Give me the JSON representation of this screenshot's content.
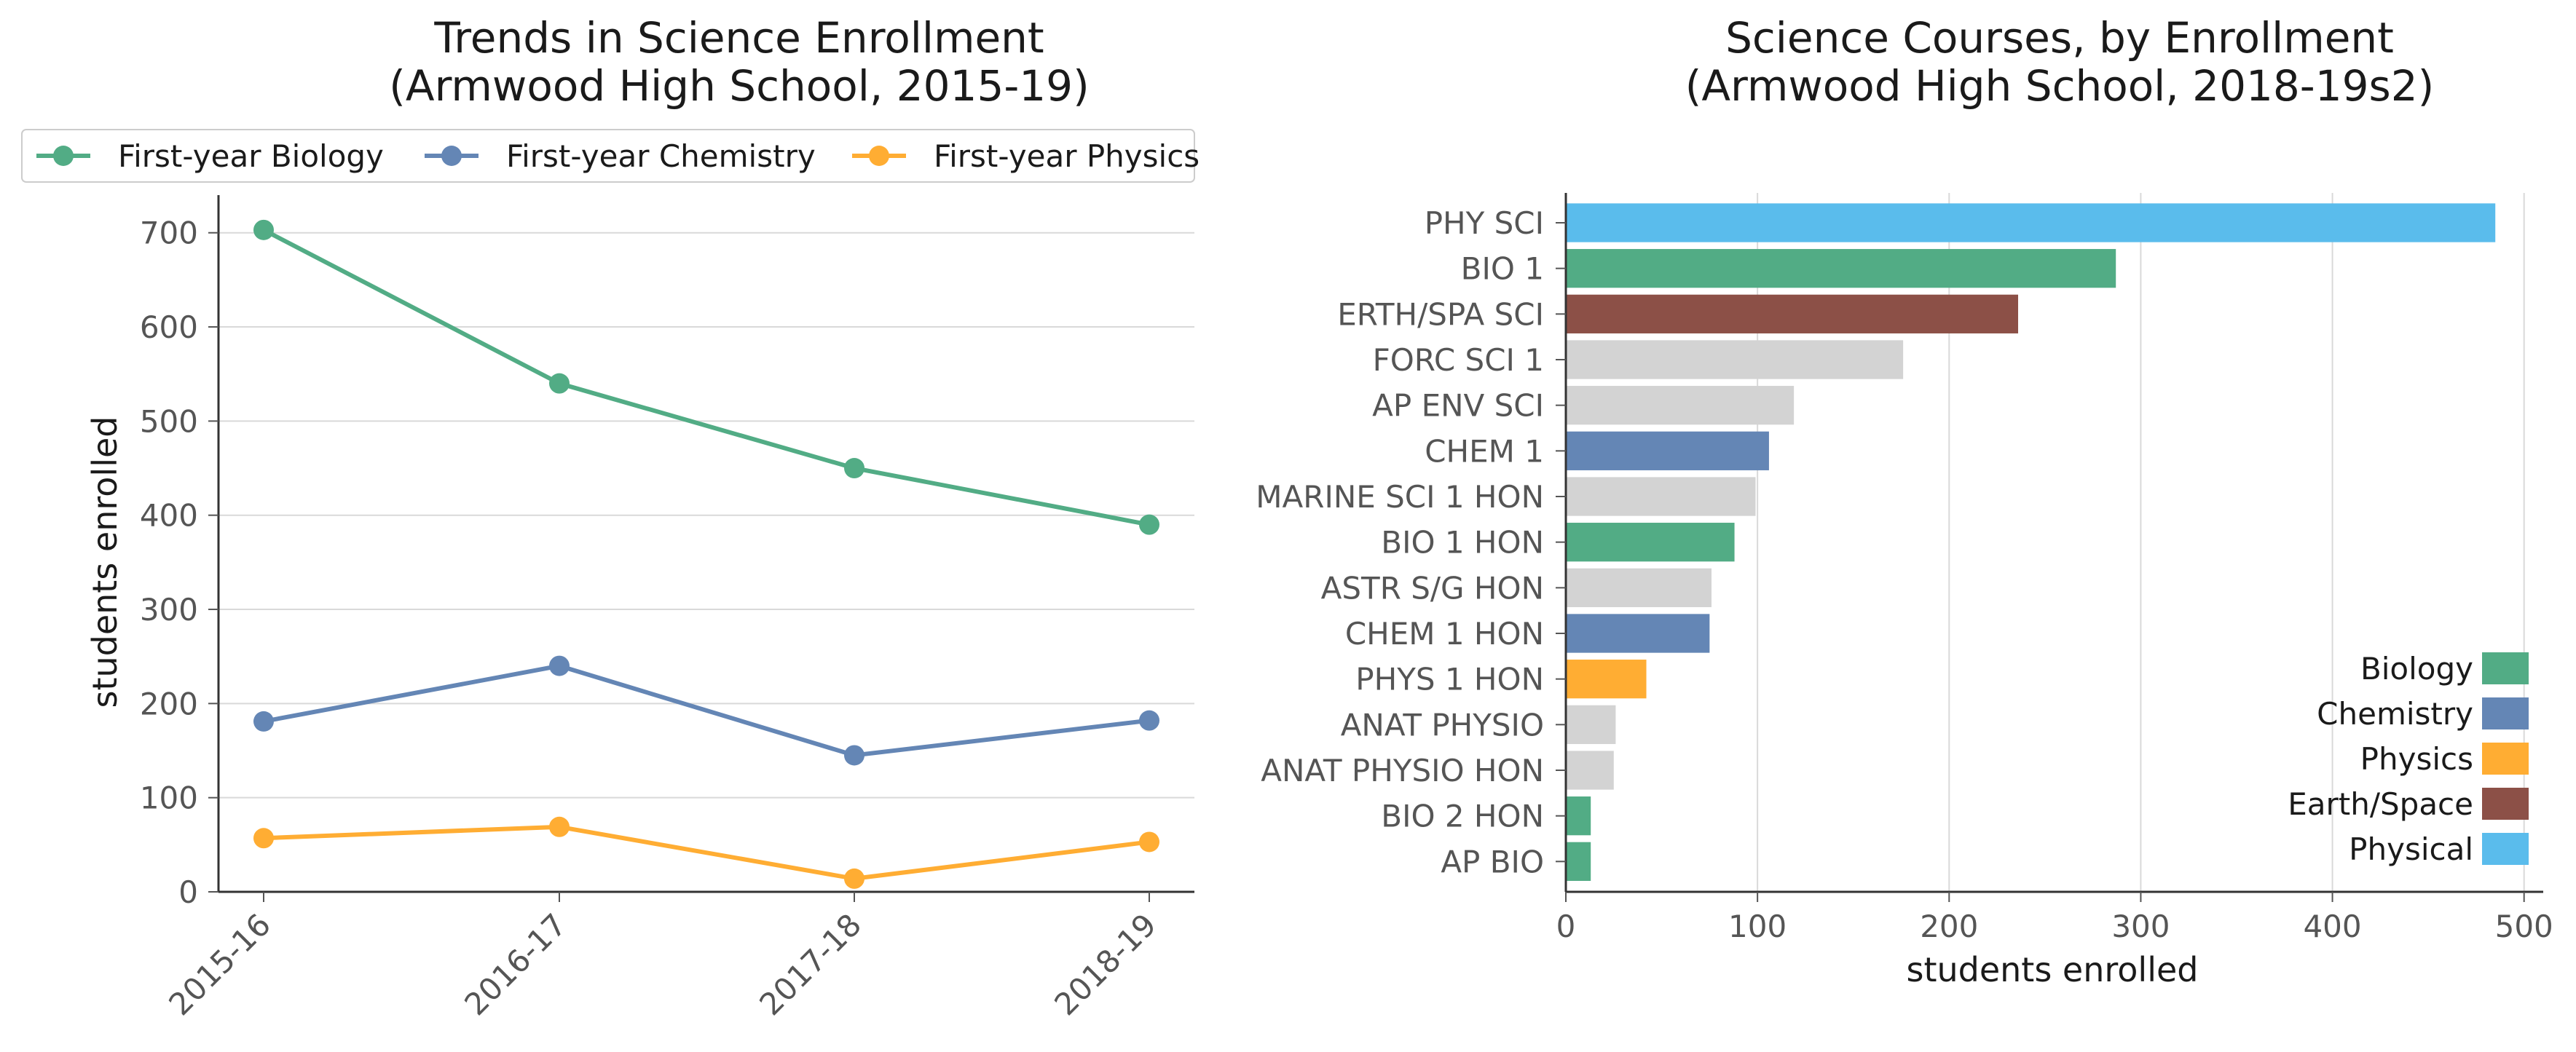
{
  "colors": {
    "Biology": "#52ac85",
    "Chemistry": "#6486b5",
    "Physics": "#ffad33",
    "Earth/Space": "#8c5047",
    "Physical": "#5abcec",
    "Other": "#d3d3d3"
  },
  "chart_data": [
    {
      "type": "line",
      "title_line1": "Trends in Science Enrollment",
      "title_line2": "(Armwood High School, 2015-19)",
      "xlabel": "",
      "ylabel": "students enrolled",
      "categories": [
        "2015-16",
        "2016-17",
        "2017-18",
        "2018-19"
      ],
      "ylim": [
        0,
        740
      ],
      "yticks": [
        0,
        100,
        200,
        300,
        400,
        500,
        600,
        700
      ],
      "grid": "horizontal",
      "legend_position": "top",
      "series": [
        {
          "name": "First-year Biology",
          "color_key": "Biology",
          "values": [
            703,
            540,
            450,
            390
          ]
        },
        {
          "name": "First-year Chemistry",
          "color_key": "Chemistry",
          "values": [
            181,
            240,
            145,
            182
          ]
        },
        {
          "name": "First-year Physics",
          "color_key": "Physics",
          "values": [
            57,
            69,
            14,
            53
          ]
        }
      ]
    },
    {
      "type": "bar",
      "orientation": "horizontal",
      "title_line1": "Science Courses, by Enrollment",
      "title_line2": "(Armwood High School, 2018-19s2)",
      "xlabel": "students enrolled",
      "ylabel": "",
      "xlim": [
        0,
        510
      ],
      "xticks": [
        0,
        100,
        200,
        300,
        400,
        500
      ],
      "grid": "vertical",
      "legend_position": "lower-right",
      "legend": [
        "Biology",
        "Chemistry",
        "Physics",
        "Earth/Space",
        "Physical"
      ],
      "bars": [
        {
          "label": "PHY SCI",
          "value": 485,
          "group": "Physical"
        },
        {
          "label": "BIO 1",
          "value": 287,
          "group": "Biology"
        },
        {
          "label": "ERTH/SPA SCI",
          "value": 236,
          "group": "Earth/Space"
        },
        {
          "label": "FORC SCI 1",
          "value": 176,
          "group": "Other"
        },
        {
          "label": "AP ENV SCI",
          "value": 119,
          "group": "Other"
        },
        {
          "label": "CHEM 1",
          "value": 106,
          "group": "Chemistry"
        },
        {
          "label": "MARINE SCI 1 HON",
          "value": 99,
          "group": "Other"
        },
        {
          "label": "BIO 1 HON",
          "value": 88,
          "group": "Biology"
        },
        {
          "label": "ASTR S/G HON",
          "value": 76,
          "group": "Other"
        },
        {
          "label": "CHEM 1 HON",
          "value": 75,
          "group": "Chemistry"
        },
        {
          "label": "PHYS 1 HON",
          "value": 42,
          "group": "Physics"
        },
        {
          "label": "ANAT PHYSIO",
          "value": 26,
          "group": "Other"
        },
        {
          "label": "ANAT PHYSIO HON",
          "value": 25,
          "group": "Other"
        },
        {
          "label": "BIO 2 HON",
          "value": 13,
          "group": "Biology"
        },
        {
          "label": "AP BIO",
          "value": 13,
          "group": "Biology"
        }
      ]
    }
  ]
}
